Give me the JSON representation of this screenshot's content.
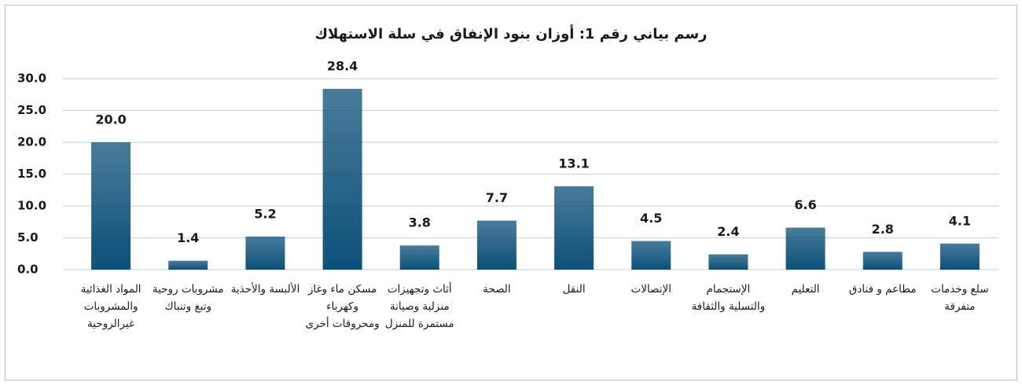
{
  "chart_data": {
    "type": "bar",
    "title": "رسم بياني رقم 1: أوزان بنود الإنفاق في سلة الاستهلاك",
    "categories": [
      "المواد الغذائية والمشروبات غيرالروحية",
      "مشروبات روحية وتبغ وتنباك",
      "الألبسة والأحذية",
      "مسكن ماء وغاز وكهرباء ومحروقات أخرى",
      "أثاث وتجهيزات منزلية وصيانة مستمرة للمنزل",
      "الصحة",
      "النقل",
      "الإتصالات",
      "الإستجمام والتسلية والثقافة",
      "التعليم",
      "مطاعم و فنادق",
      "سلع وخدمات متفرقة"
    ],
    "values": [
      20.0,
      1.4,
      5.2,
      28.4,
      3.8,
      7.7,
      13.1,
      4.5,
      2.4,
      6.6,
      2.8,
      4.1
    ],
    "value_labels": [
      "20.0",
      "1.4",
      "5.2",
      "28.4",
      "3.8",
      "7.7",
      "13.1",
      "4.5",
      "2.4",
      "6.6",
      "2.8",
      "4.1"
    ],
    "color": "#0c5079",
    "ylim": [
      0,
      30
    ],
    "yticks": [
      {
        "value": 0,
        "label": "0.0"
      },
      {
        "value": 5,
        "label": "5.0"
      },
      {
        "value": 10,
        "label": "10.0"
      },
      {
        "value": 15,
        "label": "15.0"
      },
      {
        "value": 20,
        "label": "20.0"
      },
      {
        "value": 25,
        "label": "25.0"
      },
      {
        "value": 30,
        "label": "30.0"
      }
    ],
    "grid": true
  }
}
